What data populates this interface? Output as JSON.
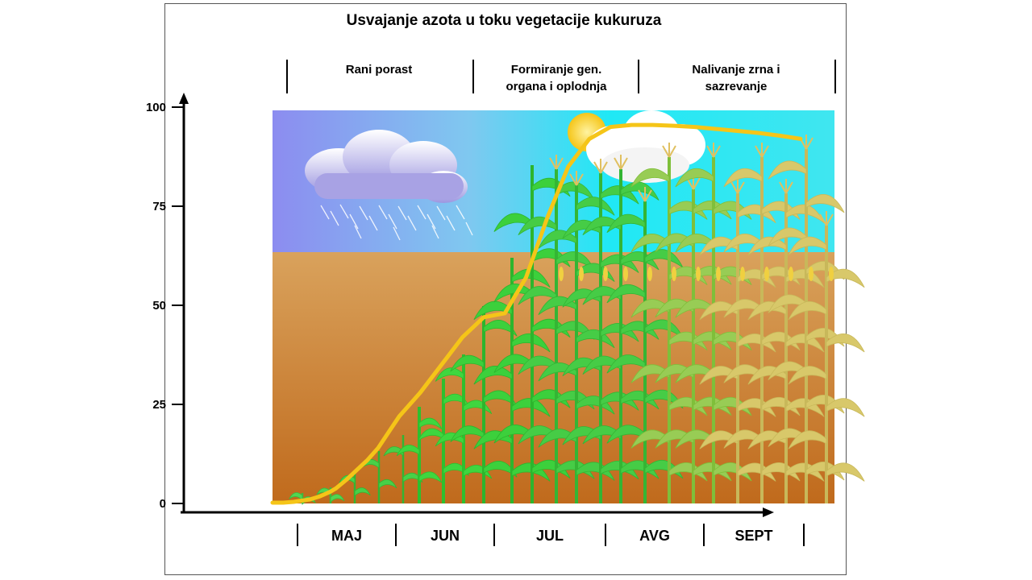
{
  "chart_data": {
    "type": "line",
    "title": "Usvajanje azota u toku vegetacije kukuruza",
    "xlabel": "",
    "ylabel": "",
    "ylim": [
      0,
      100
    ],
    "yticks": [
      "0",
      "25",
      "50",
      "75",
      "100"
    ],
    "months": [
      "MAJ",
      "JUN",
      "JUL",
      "AVG",
      "SEPT"
    ],
    "phases": [
      {
        "lines": [
          "Rani porast"
        ]
      },
      {
        "lines": [
          "Formiranje gen.",
          "organa i oplodnja"
        ]
      },
      {
        "lines": [
          "Nalivanje zrna i",
          "sazrevanje"
        ]
      }
    ],
    "series": [
      {
        "color": "#f5c518",
        "x": [
          0.0,
          0.1,
          0.2,
          0.25,
          0.35,
          0.45,
          0.55,
          0.6,
          0.7,
          0.8,
          0.9,
          1.0,
          1.1,
          1.2,
          1.4,
          1.6,
          1.8,
          2.0,
          2.2,
          2.4,
          2.6,
          2.8,
          3.0,
          3.2,
          3.4,
          3.6,
          3.8,
          4.0,
          4.2,
          4.4,
          4.6,
          4.8,
          5.0
        ],
        "y": [
          0.2,
          0.2,
          0.4,
          0.6,
          1.0,
          1.8,
          3.0,
          3.8,
          6.0,
          8.5,
          11.0,
          14.0,
          18.0,
          22.0,
          28.0,
          35.0,
          42.0,
          47.0,
          48.0,
          57.0,
          72.0,
          85.0,
          92.0,
          95.0,
          95.5,
          95.5,
          95.3,
          95.0,
          94.5,
          94.0,
          93.5,
          92.8,
          92.0
        ]
      }
    ],
    "colors": {
      "sky_top": "#00e5f5",
      "sky_left": "#8c8cf0",
      "soil": "#c87a28",
      "curve": "#f5c518"
    }
  }
}
